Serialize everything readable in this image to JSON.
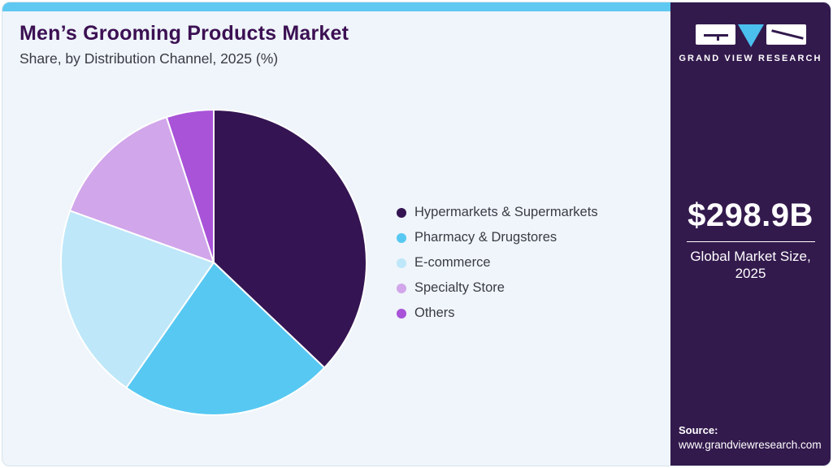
{
  "header": {
    "title": "Men’s Grooming Products Market",
    "subtitle": "Share, by Distribution Channel, 2025 (%)"
  },
  "chart_data": {
    "type": "pie",
    "title": "Men’s Grooming Products Market Share, by Distribution Channel, 2025 (%)",
    "categories": [
      "Hypermarkets & Supermarkets",
      "Pharmacy & Drugstores",
      "E-commerce",
      "Specialty Store",
      "Others"
    ],
    "values": [
      37.1,
      22.6,
      20.8,
      14.5,
      5.0
    ],
    "unit": "%",
    "colors": [
      "#341452",
      "#57c8f2",
      "#bee7f9",
      "#d1a6ea",
      "#a853d8"
    ],
    "start_angle_deg": -90,
    "direction": "clockwise",
    "legend_position": "right",
    "slice_gap_color": "#ffffff"
  },
  "sidebar": {
    "logo_text": "GRAND VIEW RESEARCH",
    "market_size": "$298.9B",
    "market_label_line1": "Global Market Size,",
    "market_label_line2": "2025",
    "source_label": "Source:",
    "source_url": "www.grandviewresearch.com"
  },
  "theme": {
    "topbar_color": "#5fc9f1",
    "panel_background": "#eff5fa",
    "sidebar_background": "#331a4d",
    "title_color": "#3c1053",
    "text_color": "#3b3b45",
    "logo_triangle_color": "#4bbfee"
  }
}
